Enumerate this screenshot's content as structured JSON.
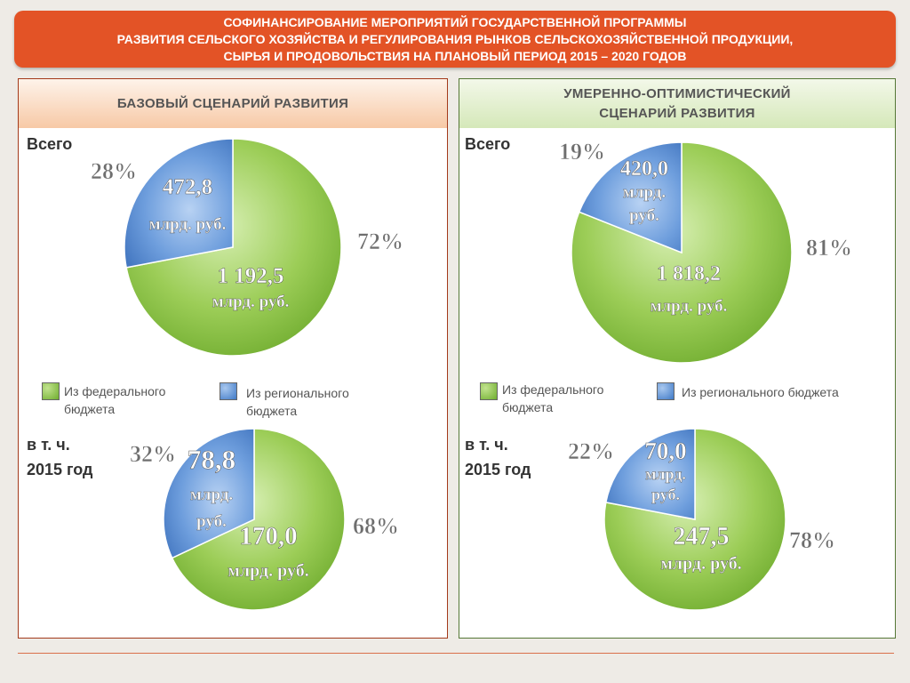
{
  "title": {
    "line1": "СОФИНАНСИРОВАНИЕ МЕРОПРИЯТИЙ ГОСУДАРСТВЕННОЙ ПРОГРАММЫ",
    "line2": "РАЗВИТИЯ СЕЛЬСКОГО ХОЗЯЙСТВА И РЕГУЛИРОВАНИЯ РЫНКОВ СЕЛЬСКОХОЗЯЙСТВЕННОЙ ПРОДУКЦИИ,",
    "line3": "СЫРЬЯ И ПРОДОВОЛЬСТВИЯ НА ПЛАНОВЫЙ ПЕРИОД 2015 – 2020 ГОДОВ"
  },
  "left": {
    "heading": "БАЗОВЫЙ СЦЕНАРИЙ РАЗВИТИЯ",
    "total_label": "Всего",
    "year_label_line1": "в т. ч.",
    "year_label_line2": "2015 год",
    "legend_fed_line1": "Из федерального",
    "legend_fed_line2": "бюджета",
    "legend_reg_line1": "Из регионального",
    "legend_reg_line2": "бюджета"
  },
  "right": {
    "heading_line1": "УМЕРЕННО-ОПТИМИСТИЧЕСКИЙ",
    "heading_line2": "СЦЕНАРИЙ РАЗВИТИЯ",
    "total_label": "Всего",
    "year_label_line1": "в т. ч.",
    "year_label_line2": "2015 год",
    "legend_fed_line1": "Из федерального",
    "legend_fed_line2": "бюджета",
    "legend_reg": "Из регионального бюджета"
  },
  "colors": {
    "federal": "#7dbb39",
    "regional": "#4f86cf",
    "title_bg": "#e35326"
  },
  "chart_data": [
    {
      "type": "pie",
      "panel": "left",
      "period": "Всего",
      "slices": [
        {
          "key": "federal",
          "percent": 72,
          "percent_label": "72%",
          "value_text": "1 192,5",
          "unit_lines": [
            "млрд. руб."
          ]
        },
        {
          "key": "regional",
          "percent": 28,
          "percent_label": "28%",
          "value_text": "472,8",
          "unit_lines": [
            "млрд. руб."
          ]
        }
      ]
    },
    {
      "type": "pie",
      "panel": "left",
      "period": "2015 год",
      "slices": [
        {
          "key": "federal",
          "percent": 68,
          "percent_label": "68%",
          "value_text": "170,0",
          "unit_lines": [
            "млрд. руб."
          ]
        },
        {
          "key": "regional",
          "percent": 32,
          "percent_label": "32%",
          "value_text": "78,8",
          "unit_lines": [
            "млрд.",
            "руб."
          ]
        }
      ]
    },
    {
      "type": "pie",
      "panel": "right",
      "period": "Всего",
      "slices": [
        {
          "key": "federal",
          "percent": 81,
          "percent_label": "81%",
          "value_text": "1 818,2",
          "unit_lines": [
            "млрд. руб."
          ]
        },
        {
          "key": "regional",
          "percent": 19,
          "percent_label": "19%",
          "value_text": "420,0",
          "unit_lines": [
            "млрд.",
            "руб."
          ]
        }
      ]
    },
    {
      "type": "pie",
      "panel": "right",
      "period": "2015 год",
      "slices": [
        {
          "key": "federal",
          "percent": 78,
          "percent_label": "78%",
          "value_text": "247,5",
          "unit_lines": [
            "млрд. руб."
          ]
        },
        {
          "key": "regional",
          "percent": 22,
          "percent_label": "22%",
          "value_text": "70,0",
          "unit_lines": [
            "млрд.",
            "руб."
          ]
        }
      ]
    }
  ]
}
